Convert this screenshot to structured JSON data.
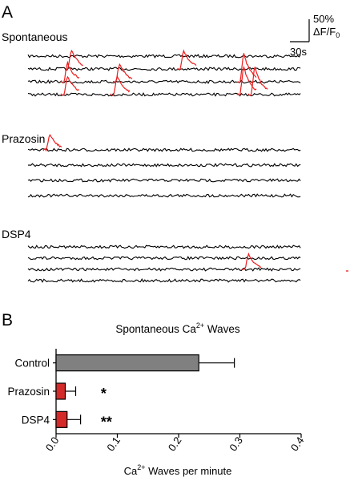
{
  "panel_a": {
    "label": "A",
    "scale_bar": {
      "y_value": "50%",
      "y_unit": "ΔF/F",
      "y_unit_sub": "0",
      "x_value": "30s"
    },
    "groups": [
      {
        "name": "Spontaneous",
        "trace_count": 4,
        "waves": [
          [
            80,
            3
          ],
          [
            142,
            3
          ],
          [
            295,
            4
          ],
          [
            314,
            3
          ],
          [
            85,
            1
          ],
          [
            225,
            1
          ],
          [
            300,
            2
          ],
          [
            80,
            2
          ],
          [
            145,
            2
          ],
          [
            300,
            3
          ]
        ]
      },
      {
        "name": "Prazosin",
        "trace_count": 4,
        "waves": [
          [
            58,
            0
          ]
        ]
      },
      {
        "name": "DSP4",
        "trace_count": 4,
        "waves": [
          [
            306,
            2
          ]
        ]
      }
    ]
  },
  "panel_b": {
    "label": "B"
  },
  "chart_data": {
    "type": "bar",
    "orientation": "horizontal",
    "title": "Spontaneous Ca",
    "title_sup": "2+",
    "title_suffix": " Waves",
    "xlabel": "Ca",
    "xlabel_sup": "2+",
    "xlabel_suffix": " Waves per minute",
    "categories": [
      "Control",
      "Prazosin",
      "DSP4"
    ],
    "values": [
      0.233,
      0.015,
      0.018
    ],
    "errors": [
      0.058,
      0.017,
      0.022
    ],
    "significance": [
      "",
      "*",
      "**"
    ],
    "xlim": [
      0,
      0.4
    ],
    "xticks": [
      "0.0",
      "0.1",
      "0.2",
      "0.3",
      "0.4"
    ],
    "colors": {
      "Control": "#808080",
      "Prazosin": "#d42a2a",
      "DSP4": "#d42a2a"
    }
  },
  "colors": {
    "trace": "#000000",
    "wave": "#ee1c1c"
  }
}
